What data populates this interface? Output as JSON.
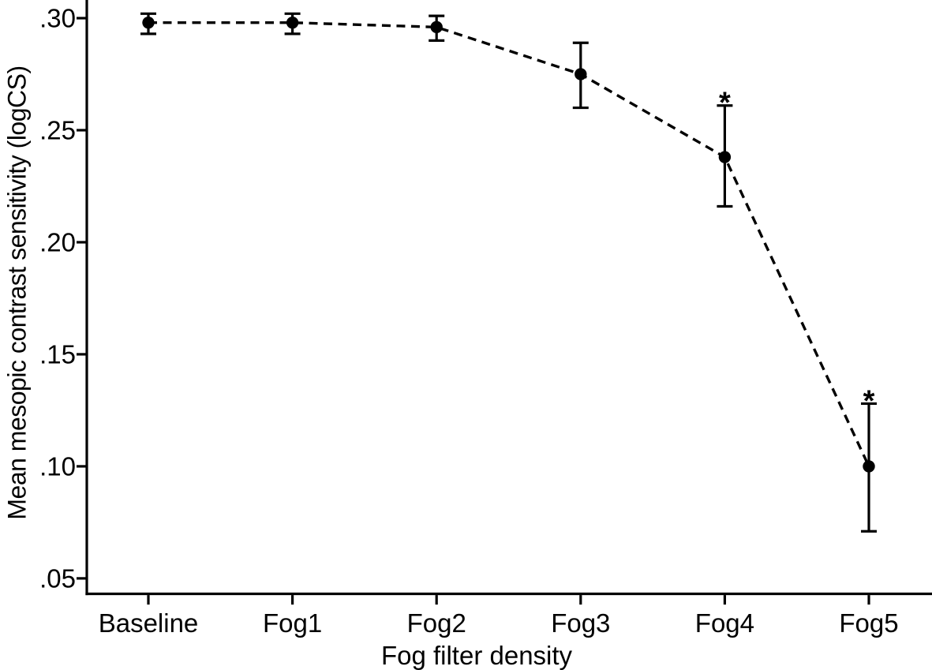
{
  "figure": {
    "background": "#ffffff",
    "ink_color": "#000000"
  },
  "chart_data": {
    "type": "line",
    "title": "",
    "xlabel": "Fog filter density",
    "ylabel": "Mean mesopic contrast sensitivity (logCS)",
    "categories": [
      "Baseline",
      "Fog1",
      "Fog2",
      "Fog3",
      "Fog4",
      "Fog5"
    ],
    "series": [
      {
        "name": "Mean mesopic contrast sensitivity",
        "values": [
          0.298,
          0.298,
          0.296,
          0.275,
          0.238,
          0.1
        ],
        "error_low": [
          0.293,
          0.293,
          0.29,
          0.26,
          0.216,
          0.071
        ],
        "error_high": [
          0.302,
          0.302,
          0.301,
          0.289,
          0.261,
          0.128
        ],
        "annotations": [
          "",
          "",
          "",
          "",
          "*",
          "*"
        ],
        "line_style": "dashed",
        "marker": "filled-circle",
        "color": "#000000"
      }
    ],
    "y_ticks": {
      "values": [
        0.05,
        0.1,
        0.15,
        0.2,
        0.25,
        0.3
      ],
      "labels": [
        ".05",
        ".10",
        ".15",
        ".20",
        ".25",
        ".30"
      ]
    },
    "ylim": [
      0.0431,
      0.3081
    ],
    "grid": false,
    "legend": false
  }
}
